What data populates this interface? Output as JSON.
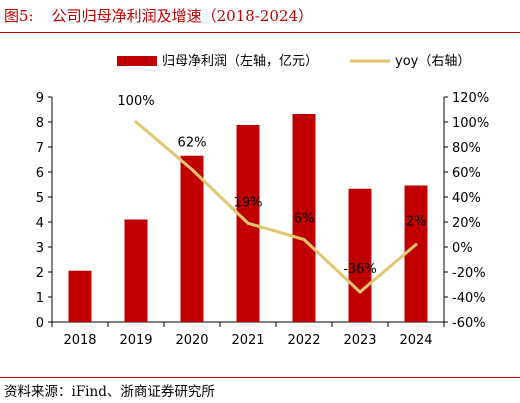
{
  "figure": {
    "label": "图5:",
    "title": "公司归母净利润及增速（2018-2024）",
    "source": "资料来源：iFind、浙商证券研究所"
  },
  "chart_data": {
    "type": "bar",
    "categories": [
      "2018",
      "2019",
      "2020",
      "2021",
      "2022",
      "2023",
      "2024"
    ],
    "series": [
      {
        "name": "归母净利润（左轴，亿元）",
        "type": "bar",
        "axis": "left",
        "color": "#c00000",
        "values": [
          2.05,
          4.1,
          6.65,
          7.88,
          8.32,
          5.33,
          5.46
        ]
      },
      {
        "name": "yoy（右轴）",
        "type": "line",
        "axis": "right",
        "color": "#e2c66e",
        "values": [
          null,
          1.0,
          0.62,
          0.19,
          0.06,
          -0.36,
          0.02
        ],
        "data_labels": [
          "",
          "100%",
          "62%",
          "19%",
          "6%",
          "-36%",
          "2%"
        ]
      }
    ],
    "y_left": {
      "min": 0,
      "max": 9,
      "ticks": [
        "0",
        "1",
        "2",
        "3",
        "4",
        "5",
        "6",
        "7",
        "8",
        "9"
      ]
    },
    "y_right": {
      "min": -0.6,
      "max": 1.2,
      "ticks": [
        "-60%",
        "-40%",
        "-20%",
        "0%",
        "20%",
        "40%",
        "60%",
        "80%",
        "100%",
        "120%"
      ]
    },
    "legend_position": "top",
    "grid": false
  }
}
